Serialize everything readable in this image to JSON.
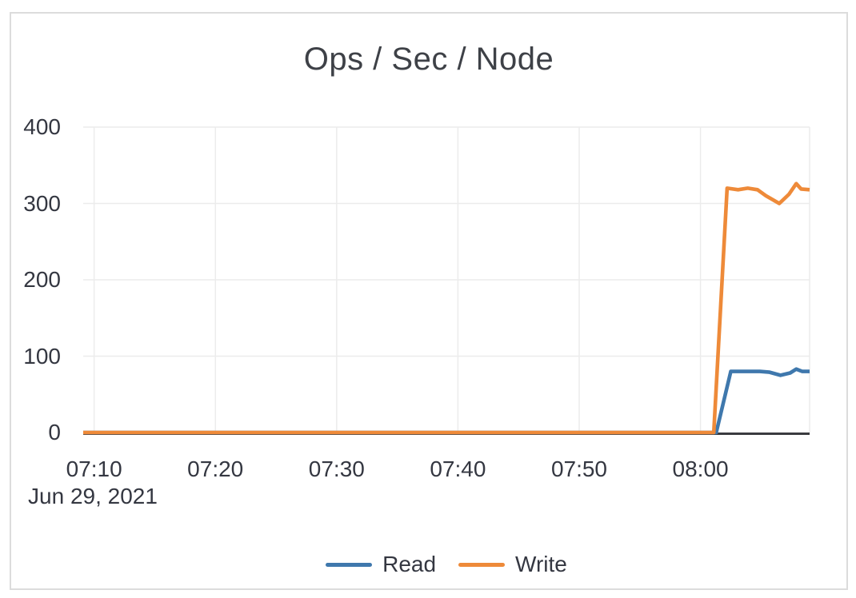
{
  "chart_data": {
    "type": "line",
    "title": "Ops / Sec / Node",
    "x_axis": {
      "date_label": "Jun 29, 2021",
      "tick_labels": [
        "07:10",
        "07:20",
        "07:30",
        "07:40",
        "07:50",
        "08:00"
      ],
      "tick_minutes": [
        10,
        20,
        30,
        40,
        50,
        60
      ],
      "domain_minutes": [
        9.1,
        69
      ]
    },
    "y_axis": {
      "ticks": [
        0,
        100,
        200,
        300,
        400
      ],
      "range": [
        0,
        400
      ]
    },
    "grid": true,
    "grid_color": "#ececec",
    "axis_color": "#3a3b3f",
    "legend_position": "bottom",
    "series": [
      {
        "name": "Read",
        "color": "#3f78ad",
        "points": [
          [
            9.1,
            0
          ],
          [
            61.3,
            0
          ],
          [
            62.5,
            80
          ],
          [
            64.9,
            80
          ],
          [
            65.7,
            79
          ],
          [
            66.6,
            75
          ],
          [
            67.4,
            78
          ],
          [
            67.9,
            83
          ],
          [
            68.4,
            80
          ],
          [
            69,
            80
          ]
        ]
      },
      {
        "name": "Write",
        "color": "#ee8a39",
        "points": [
          [
            9.1,
            0
          ],
          [
            61.1,
            0
          ],
          [
            62.2,
            320
          ],
          [
            63.1,
            318
          ],
          [
            63.9,
            320
          ],
          [
            64.7,
            318
          ],
          [
            65.4,
            310
          ],
          [
            66.5,
            300
          ],
          [
            67.3,
            312
          ],
          [
            67.9,
            326
          ],
          [
            68.3,
            319
          ],
          [
            69,
            318
          ]
        ]
      }
    ]
  }
}
